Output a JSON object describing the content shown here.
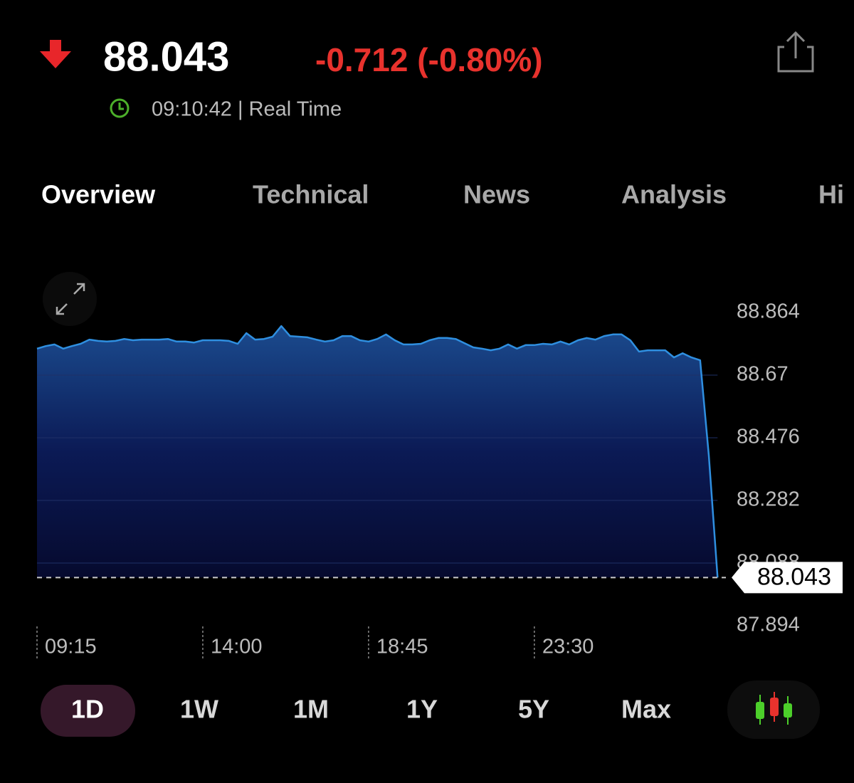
{
  "header": {
    "price": "88.043",
    "change": "-0.712 (-0.80%)",
    "time": "09:10:42 | Real Time"
  },
  "tabs": [
    "Overview",
    "Technical",
    "News",
    "Analysis",
    "Hi"
  ],
  "chart_data": {
    "type": "area",
    "categories": [
      "09:15",
      null,
      null,
      null,
      null,
      null,
      null,
      null,
      null,
      null,
      null,
      null,
      null,
      null,
      null,
      null,
      null,
      null,
      null,
      "14:00",
      null,
      null,
      null,
      null,
      null,
      null,
      null,
      null,
      null,
      null,
      null,
      null,
      null,
      null,
      null,
      null,
      null,
      null,
      "18:45",
      null,
      null,
      null,
      null,
      null,
      null,
      null,
      null,
      null,
      null,
      null,
      null,
      null,
      null,
      null,
      null,
      null,
      null,
      "23:30",
      null,
      null,
      null,
      null,
      null,
      null,
      null,
      null,
      null,
      null,
      null,
      null,
      null,
      null,
      null,
      null,
      null,
      null,
      null,
      null,
      null
    ],
    "values": [
      88.752,
      88.76,
      88.765,
      88.752,
      88.76,
      88.767,
      88.78,
      88.776,
      88.774,
      88.776,
      88.782,
      88.778,
      88.78,
      88.78,
      88.78,
      88.782,
      88.774,
      88.774,
      88.771,
      88.778,
      88.778,
      88.778,
      88.776,
      88.767,
      88.8,
      88.78,
      88.782,
      88.789,
      88.822,
      88.791,
      88.789,
      88.787,
      88.78,
      88.774,
      88.778,
      88.791,
      88.791,
      88.778,
      88.774,
      88.782,
      88.796,
      88.778,
      88.765,
      88.765,
      88.767,
      88.778,
      88.785,
      88.785,
      88.782,
      88.769,
      88.756,
      88.752,
      88.747,
      88.752,
      88.765,
      88.752,
      88.763,
      88.763,
      88.767,
      88.765,
      88.774,
      88.765,
      88.778,
      88.785,
      88.78,
      88.791,
      88.796,
      88.796,
      88.778,
      88.743,
      88.747,
      88.747,
      88.747,
      88.725,
      88.738,
      88.725,
      88.716,
      88.421,
      88.043
    ],
    "color": "#2f8fe0",
    "ylim": [
      87.894,
      88.864
    ],
    "yticks": [
      87.894,
      88.088,
      88.282,
      88.476,
      88.67,
      88.864
    ],
    "grid": true
  },
  "ranges": [
    "1D",
    "1W",
    "1M",
    "1Y",
    "5Y",
    "Max"
  ]
}
